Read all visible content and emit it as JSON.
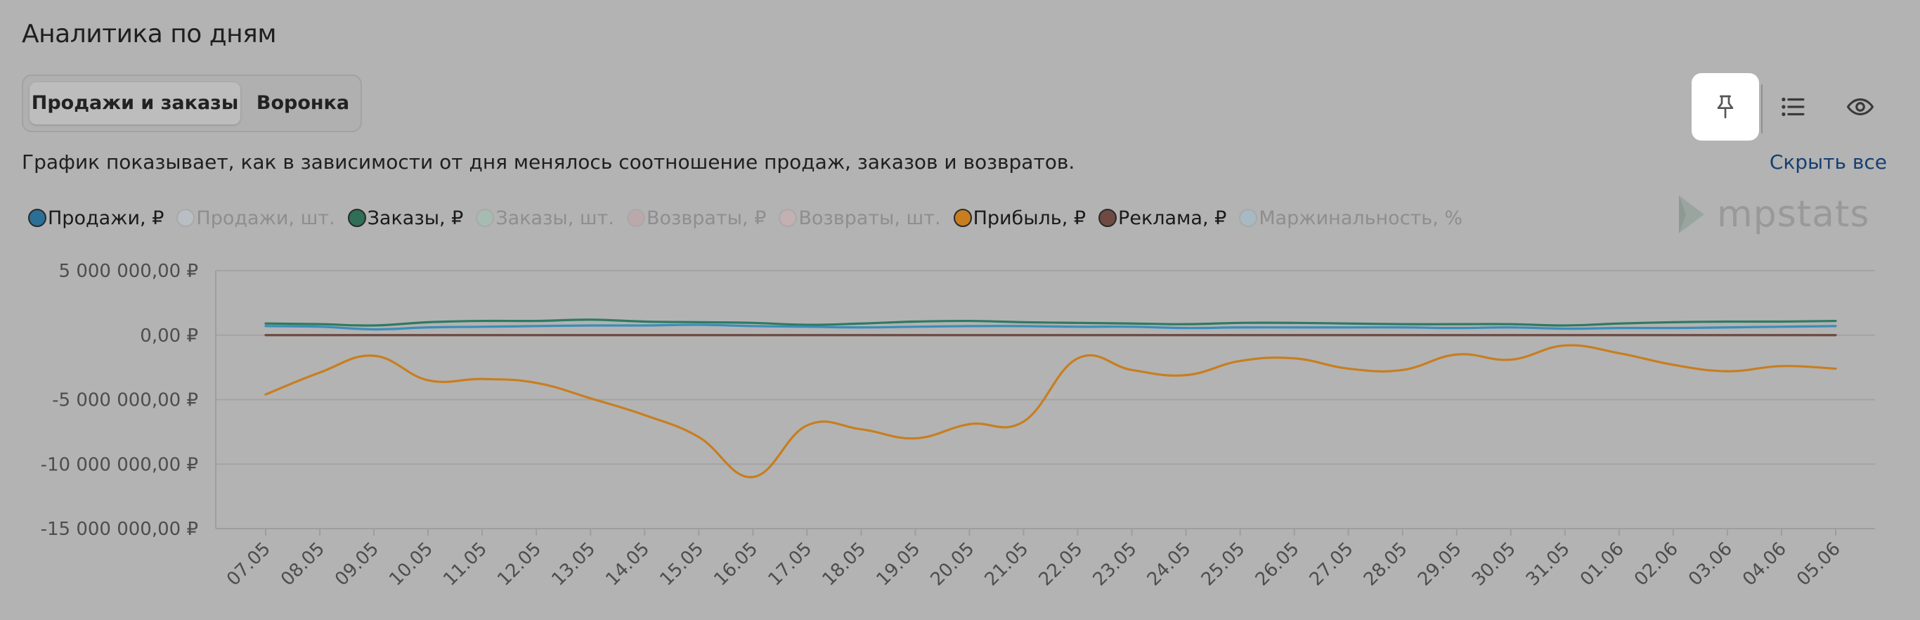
{
  "header": {
    "title": "Аналитика по дням",
    "description": "График показывает, как в зависимости от дня менялось соотношение продаж, заказов и возвратов.",
    "hide_all": "Скрыть все"
  },
  "tabs": [
    {
      "label": "Продажи и заказы",
      "active": true
    },
    {
      "label": "Воронка",
      "active": false
    }
  ],
  "toolbar": {
    "pin_icon": "pin-icon",
    "list_icon": "list-icon",
    "eye_icon": "eye-icon",
    "pin_active": true
  },
  "brand": {
    "text": "mpstats",
    "color": "#999999"
  },
  "legend": [
    {
      "label": "Продажи, ₽",
      "color": "#2b6f97",
      "active": true
    },
    {
      "label": "Продажи, шт.",
      "color": "#b9bec4",
      "active": false
    },
    {
      "label": "Заказы, ₽",
      "color": "#2f6e57",
      "active": true
    },
    {
      "label": "Заказы, шт.",
      "color": "#a6bcb3",
      "active": false
    },
    {
      "label": "Возвраты, ₽",
      "color": "#bba8ab",
      "active": false
    },
    {
      "label": "Возвраты, шт.",
      "color": "#c2b0b2",
      "active": false
    },
    {
      "label": "Прибыль, ₽",
      "color": "#c87e1f",
      "active": true
    },
    {
      "label": "Реклама, ₽",
      "color": "#6e4a43",
      "active": true
    },
    {
      "label": "Маржинальность, %",
      "color": "#a7bac4",
      "active": false
    }
  ],
  "chart_data": {
    "type": "line",
    "ylim": [
      -15000000,
      5000000
    ],
    "y_ticks": [
      5000000,
      0,
      -5000000,
      -10000000,
      -15000000
    ],
    "y_tick_labels": [
      "5 000 000,00 ₽",
      "0,00 ₽",
      "-5 000 000,00 ₽",
      "-10 000 000,00 ₽",
      "-15 000 000,00 ₽"
    ],
    "grid": true,
    "categories": [
      "07.05",
      "08.05",
      "09.05",
      "10.05",
      "11.05",
      "12.05",
      "13.05",
      "14.05",
      "15.05",
      "16.05",
      "17.05",
      "18.05",
      "19.05",
      "20.05",
      "21.05",
      "22.05",
      "23.05",
      "24.05",
      "25.05",
      "26.05",
      "27.05",
      "28.05",
      "29.05",
      "30.05",
      "31.05",
      "01.06",
      "02.06",
      "03.06",
      "04.06",
      "05.06"
    ],
    "series": [
      {
        "name": "Заказы, ₽",
        "color": "#2f7a63",
        "values": [
          900000,
          850000,
          750000,
          1000000,
          1100000,
          1100000,
          1200000,
          1050000,
          1000000,
          950000,
          800000,
          900000,
          1050000,
          1100000,
          1000000,
          950000,
          900000,
          850000,
          950000,
          950000,
          900000,
          850000,
          850000,
          850000,
          750000,
          900000,
          1000000,
          1050000,
          1050000,
          1100000
        ]
      },
      {
        "name": "Продажи, ₽",
        "color": "#3b8db8",
        "values": [
          700000,
          650000,
          450000,
          600000,
          650000,
          700000,
          750000,
          750000,
          800000,
          700000,
          650000,
          600000,
          650000,
          700000,
          700000,
          650000,
          650000,
          550000,
          600000,
          600000,
          600000,
          600000,
          550000,
          600000,
          500000,
          550000,
          550000,
          600000,
          650000,
          700000
        ]
      },
      {
        "name": "Реклама, ₽",
        "color": "#6e4a43",
        "values": [
          0,
          0,
          0,
          0,
          0,
          0,
          0,
          0,
          0,
          0,
          0,
          0,
          0,
          0,
          0,
          0,
          0,
          0,
          0,
          0,
          0,
          0,
          0,
          0,
          0,
          0,
          0,
          0,
          0,
          0
        ]
      },
      {
        "name": "Прибыль, ₽",
        "color": "#c87e1f",
        "values": [
          -4600000,
          -2900000,
          -1600000,
          -3500000,
          -3400000,
          -3700000,
          -4900000,
          -6200000,
          -7900000,
          -11000000,
          -7000000,
          -7300000,
          -8000000,
          -6900000,
          -6700000,
          -1800000,
          -2700000,
          -3100000,
          -2000000,
          -1800000,
          -2600000,
          -2700000,
          -1500000,
          -1900000,
          -800000,
          -1400000,
          -2300000,
          -2800000,
          -2400000,
          -2600000
        ]
      }
    ]
  }
}
